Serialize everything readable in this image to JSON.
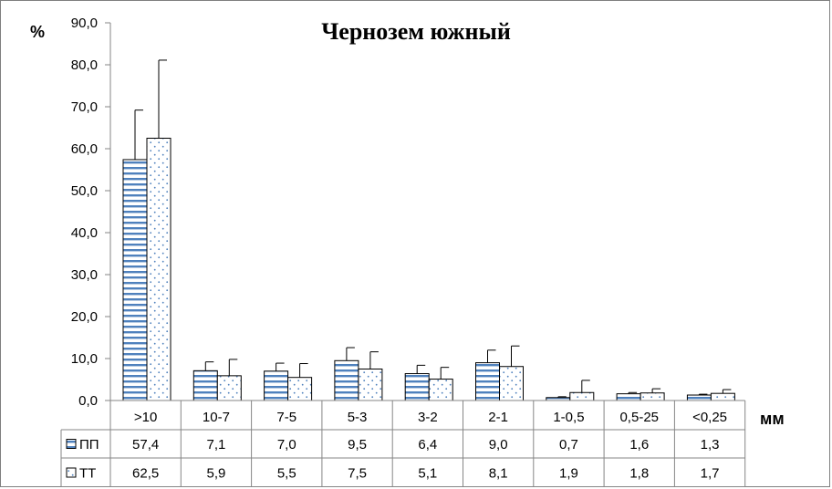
{
  "chart_data": {
    "type": "bar",
    "title": "Чернозем южный",
    "ylabel": "%",
    "xlabel": "мм",
    "ylim": [
      0,
      90
    ],
    "y_ticks": [
      "0,0",
      "10,0",
      "20,0",
      "30,0",
      "40,0",
      "50,0",
      "60,0",
      "70,0",
      "80,0",
      "90,0"
    ],
    "categories": [
      ">10",
      "10-7",
      "7-5",
      "5-3",
      "3-2",
      "2-1",
      "1-0,5",
      "0,5-25",
      "<0,25"
    ],
    "series": [
      {
        "name": "ПП",
        "pattern": "horizontal-lines",
        "color": "#4f81bd",
        "values": [
          57.4,
          7.1,
          7.0,
          9.5,
          6.4,
          9.0,
          0.7,
          1.6,
          1.3
        ],
        "labels": [
          "57,4",
          "7,1",
          "7,0",
          "9,5",
          "6,4",
          "9,0",
          "0,7",
          "1,6",
          "1,3"
        ],
        "error_top": [
          69.2,
          9.2,
          8.9,
          12.6,
          8.4,
          12.0,
          0.9,
          1.9,
          1.5
        ]
      },
      {
        "name": "ТТ",
        "pattern": "dots",
        "color": "#4f81bd",
        "values": [
          62.5,
          5.9,
          5.5,
          7.5,
          5.1,
          8.1,
          1.9,
          1.8,
          1.7
        ],
        "labels": [
          "62,5",
          "5,9",
          "5,5",
          "7,5",
          "5,1",
          "8,1",
          "1,9",
          "1,8",
          "1,7"
        ],
        "error_top": [
          81.1,
          9.8,
          8.8,
          11.6,
          7.9,
          13.0,
          4.8,
          2.8,
          2.6
        ]
      }
    ],
    "grid": false,
    "legend": "data-table"
  }
}
